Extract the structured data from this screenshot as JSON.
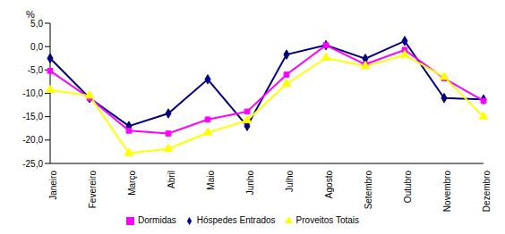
{
  "chart_data": {
    "type": "line",
    "y_label": "%",
    "categories": [
      "Janeiro",
      "Fevereiro",
      "Março",
      "Abril",
      "Maio",
      "Junho",
      "Julho",
      "Agosto",
      "Setembro",
      "Outubro",
      "Novembro",
      "Dezembro"
    ],
    "series": [
      {
        "name": "Hóspedes Entrados",
        "color": "#000080",
        "marker": "diamond",
        "values": [
          -2.5,
          -11,
          -17,
          -14.3,
          -7,
          -17,
          -1.7,
          0.3,
          -2.6,
          1.2,
          -11,
          -11.3
        ]
      },
      {
        "name": "Dormidas",
        "color": "#FF00FF",
        "marker": "square",
        "values": [
          -5.2,
          -11,
          -18,
          -18.6,
          -15.6,
          -13.9,
          -6,
          0.3,
          -3.8,
          -0.7,
          -6.8,
          -11.6
        ]
      },
      {
        "name": "Proveitos Totais",
        "color": "#FFFF00",
        "marker": "triangle",
        "values": [
          -9.3,
          -10.5,
          -22.8,
          -21.9,
          -18.4,
          -15.8,
          -8,
          -2.4,
          -4.2,
          -1.8,
          -6.5,
          -15
        ]
      }
    ],
    "ylim": [
      -25,
      5
    ],
    "yticks": [
      {
        "value": -25,
        "label": "-25,0"
      },
      {
        "value": -20,
        "label": "-20,0"
      },
      {
        "value": -15,
        "label": "-15,0"
      },
      {
        "value": -10,
        "label": "-10,0"
      },
      {
        "value": -5,
        "label": "-5,0"
      },
      {
        "value": 0,
        "label": "0,0"
      },
      {
        "value": 5,
        "label": "5,0"
      }
    ],
    "grid": false,
    "legend": "bottom"
  }
}
